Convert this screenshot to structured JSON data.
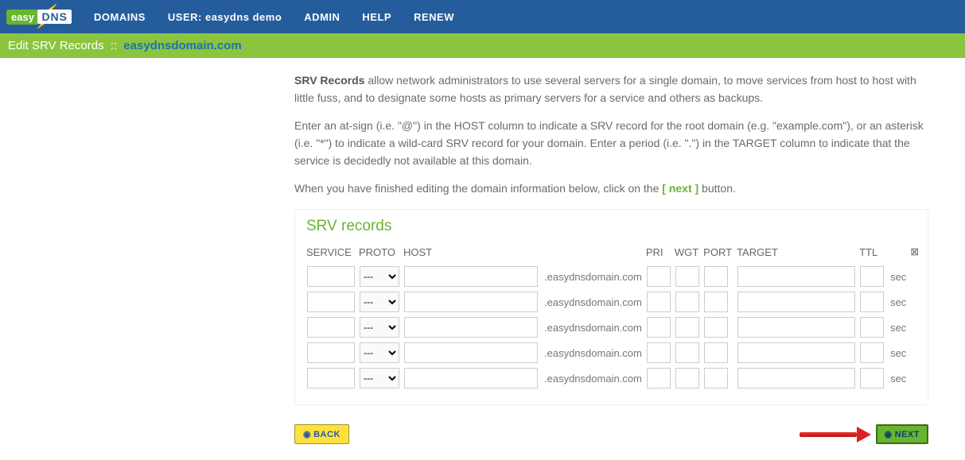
{
  "brand": {
    "easy": "easy",
    "dns": "DNS"
  },
  "nav": {
    "domains": "DOMAINS",
    "user_prefix": "USER:",
    "user_name": "easydns demo",
    "admin": "ADMIN",
    "help": "HELP",
    "renew": "RENEW"
  },
  "subheader": {
    "title": "Edit SRV Records",
    "sep": "::",
    "domain": "easydnsdomain.com"
  },
  "intro": {
    "p1_bold": "SRV Records",
    "p1_rest": " allow network administrators to use several servers for a single domain, to move services from host to host with little fuss, and to designate some hosts as primary servers for a service and others as backups.",
    "p2": "Enter an at-sign (i.e. \"@\") in the HOST column to indicate a SRV record for the root domain (e.g. \"example.com\"), or an asterisk (i.e. \"*\") to indicate a wild-card SRV record for your domain. Enter a period (i.e. \".\") in the TARGET column to indicate that the service is decidedly not available at this domain.",
    "p3_pre": "When you have finished editing the domain information below, click on the ",
    "p3_link": "[ next ]",
    "p3_post": " button."
  },
  "panel": {
    "title": "SRV records",
    "columns": {
      "service": "SERVICE",
      "proto": "PROTO",
      "host": "HOST",
      "pri": "PRI",
      "wgt": "WGT",
      "port": "PORT",
      "target": "TARGET",
      "ttl": "TTL"
    },
    "proto_placeholder": "---",
    "domain_suffix": ".easydnsdomain.com",
    "ttl_unit": "sec",
    "delete_glyph": "⊠",
    "row_count": 5
  },
  "buttons": {
    "back": "BACK",
    "next": "NEXT"
  },
  "colors": {
    "topbar": "#255d9c",
    "subbar": "#8bc53f",
    "accent_green": "#6ab42f",
    "back_btn": "#ffe13d",
    "next_btn": "#6ab42f",
    "domain_link": "#1b72b5"
  }
}
